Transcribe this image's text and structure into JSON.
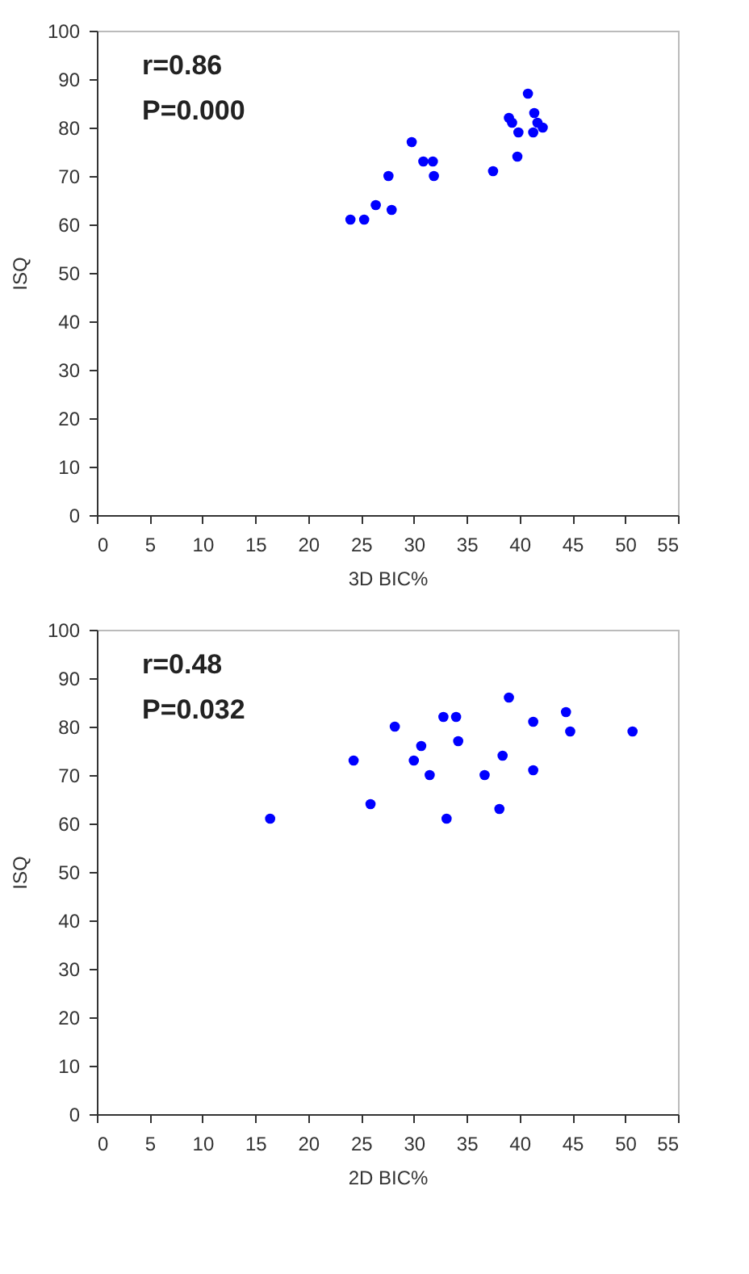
{
  "chart_data": [
    {
      "type": "scatter",
      "xlabel": "3D BIC%",
      "ylabel": "ISQ",
      "annotations": [
        "r=0.86",
        "P=0.000"
      ],
      "xlim": [
        0,
        55
      ],
      "xticks": [
        0,
        5,
        10,
        15,
        20,
        25,
        30,
        35,
        40,
        45,
        50,
        55
      ],
      "ylim": [
        0,
        100
      ],
      "yticks": [
        0,
        10,
        20,
        30,
        40,
        50,
        60,
        70,
        80,
        90,
        100
      ],
      "grid": false,
      "marker": "circle",
      "series": [
        {
          "color": "#0000ff",
          "x": [
            24.0,
            25.3,
            26.4,
            27.9,
            27.6,
            29.8,
            30.9,
            31.8,
            31.9,
            37.5,
            39.8,
            39.0,
            39.3,
            39.9,
            40.8,
            41.4,
            41.7,
            41.3,
            42.2
          ],
          "values": [
            61,
            61,
            64,
            63,
            70,
            77,
            73,
            73,
            70,
            71,
            74,
            82,
            81,
            79,
            87,
            83,
            81,
            79,
            80
          ]
        }
      ]
    },
    {
      "type": "scatter",
      "xlabel": "2D BIC%",
      "ylabel": "ISQ",
      "annotations": [
        "r=0.48",
        "P=0.032"
      ],
      "xlim": [
        0,
        55
      ],
      "xticks": [
        0,
        5,
        10,
        15,
        20,
        25,
        30,
        35,
        40,
        45,
        50,
        55
      ],
      "ylim": [
        0,
        100
      ],
      "yticks": [
        0,
        10,
        20,
        30,
        40,
        50,
        60,
        70,
        80,
        90,
        100
      ],
      "grid": false,
      "marker": "circle",
      "series": [
        {
          "color": "#0000ff",
          "x": [
            16.4,
            24.3,
            25.9,
            28.2,
            30.0,
            30.7,
            31.5,
            32.8,
            33.1,
            34.0,
            34.2,
            36.7,
            38.1,
            38.4,
            39.0,
            41.3,
            41.3,
            44.4,
            44.8,
            50.7
          ],
          "values": [
            61,
            73,
            64,
            80,
            73,
            76,
            70,
            82,
            61,
            82,
            77,
            70,
            63,
            74,
            86,
            81,
            71,
            83,
            79,
            79
          ]
        }
      ]
    }
  ]
}
